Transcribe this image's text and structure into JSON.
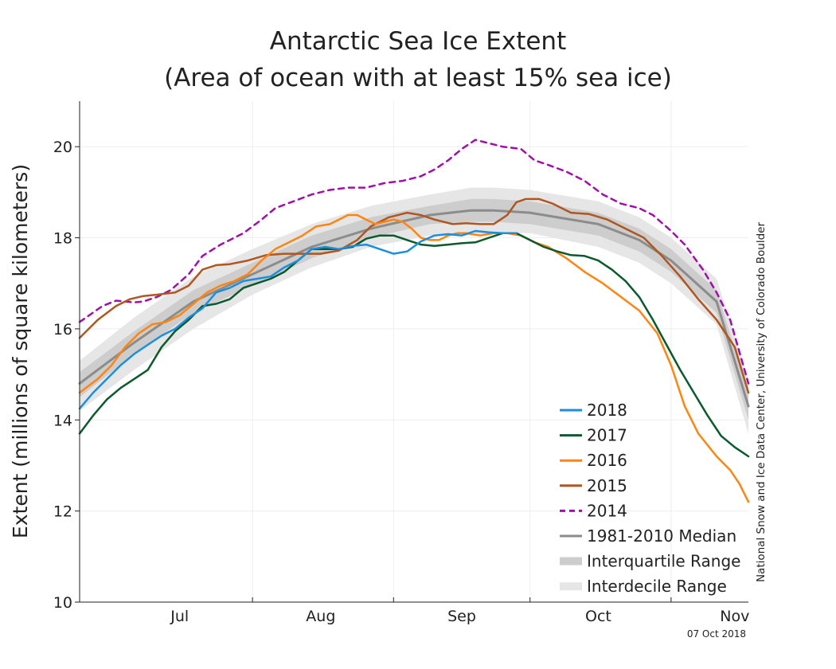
{
  "chart_data": {
    "type": "line",
    "title_line1": "Antarctic Sea Ice Extent",
    "title_line2": "(Area of ocean with at least 15% sea ice)",
    "ylabel": "Extent (millions of square kilometers)",
    "xlabel": "",
    "x_unit": "day of year",
    "xlim": [
      174,
      321
    ],
    "ylim": [
      10,
      21
    ],
    "y_ticks": [
      10,
      12,
      14,
      16,
      18,
      20
    ],
    "x_month_labels": [
      {
        "label": "Jul",
        "center": 196
      },
      {
        "label": "Aug",
        "center": 227
      },
      {
        "label": "Sep",
        "center": 258
      },
      {
        "label": "Oct",
        "center": 288
      },
      {
        "label": "Nov",
        "center": 318
      }
    ],
    "x_month_boundaries": [
      212,
      243,
      273,
      304
    ],
    "grid": true,
    "legend_position": "bottom-right",
    "credit": "National Snow and Ice Data Center, University of Colorado Boulder",
    "date_stamp": "07 Oct 2018",
    "legend": [
      {
        "label": "2018",
        "color": "#1a8fe0",
        "kind": "line"
      },
      {
        "label": "2017",
        "color": "#0b5a2e",
        "kind": "line"
      },
      {
        "label": "2016",
        "color": "#ff8410",
        "kind": "line"
      },
      {
        "label": "2015",
        "color": "#b0561e",
        "kind": "line"
      },
      {
        "label": "2014",
        "color": "#a010a8",
        "kind": "dashed"
      },
      {
        "label": "1981-2010 Median",
        "color": "#8c8c8c",
        "kind": "line"
      },
      {
        "label": "Interquartile Range",
        "color": "#cdcdcd",
        "kind": "band"
      },
      {
        "label": "Interdecile Range",
        "color": "#e6e6e6",
        "kind": "band"
      }
    ],
    "series": [
      {
        "name": "1981-2010 Median",
        "color": "#8c8c8c",
        "width": 3,
        "dash": "",
        "x": [
          174,
          186,
          199,
          212,
          225,
          238,
          251,
          260,
          265,
          273,
          288,
          297,
          304,
          314,
          321
        ],
        "y": [
          14.8,
          15.7,
          16.6,
          17.2,
          17.8,
          18.2,
          18.5,
          18.6,
          18.6,
          18.55,
          18.3,
          17.95,
          17.5,
          16.6,
          14.3
        ]
      },
      {
        "name": "2014",
        "color": "#a010a8",
        "width": 2.5,
        "dash": "7,6",
        "x": [
          174,
          179,
          182,
          184,
          186,
          188,
          191,
          194,
          198,
          201,
          205,
          210,
          214,
          217,
          221,
          225,
          229,
          233,
          237,
          241,
          245,
          249,
          252,
          255,
          258,
          261,
          263,
          267,
          271,
          274,
          277,
          281,
          285,
          289,
          293,
          297,
          300,
          304,
          307,
          311,
          314,
          317,
          321
        ],
        "y": [
          16.15,
          16.5,
          16.62,
          16.6,
          16.58,
          16.6,
          16.7,
          16.85,
          17.2,
          17.6,
          17.85,
          18.1,
          18.4,
          18.65,
          18.8,
          18.95,
          19.05,
          19.1,
          19.1,
          19.2,
          19.25,
          19.35,
          19.5,
          19.7,
          19.95,
          20.15,
          20.1,
          20.0,
          19.95,
          19.7,
          19.6,
          19.45,
          19.25,
          18.95,
          18.75,
          18.65,
          18.5,
          18.15,
          17.85,
          17.3,
          16.8,
          16.2,
          14.8
        ]
      },
      {
        "name": "2015",
        "color": "#b0561e",
        "width": 2.5,
        "dash": "",
        "x": [
          174,
          178,
          182,
          185,
          188,
          191,
          195,
          198,
          201,
          204,
          207,
          211,
          215,
          219,
          223,
          227,
          231,
          235,
          238,
          242,
          246,
          249,
          252,
          256,
          259,
          262,
          265,
          268,
          270,
          272,
          275,
          278,
          282,
          286,
          290,
          294,
          298,
          302,
          306,
          310,
          314,
          318,
          321
        ],
        "y": [
          15.8,
          16.2,
          16.5,
          16.65,
          16.72,
          16.75,
          16.8,
          16.95,
          17.3,
          17.4,
          17.42,
          17.5,
          17.62,
          17.65,
          17.65,
          17.65,
          17.72,
          17.95,
          18.25,
          18.45,
          18.55,
          18.5,
          18.4,
          18.3,
          18.32,
          18.3,
          18.3,
          18.5,
          18.78,
          18.85,
          18.85,
          18.75,
          18.55,
          18.52,
          18.4,
          18.2,
          18.0,
          17.6,
          17.15,
          16.65,
          16.2,
          15.6,
          14.6
        ]
      },
      {
        "name": "2016",
        "color": "#ff8410",
        "width": 2.5,
        "dash": "",
        "x": [
          174,
          178,
          181,
          184,
          187,
          190,
          193,
          196,
          199,
          202,
          205,
          208,
          211,
          214,
          217,
          220,
          223,
          226,
          229,
          231,
          233,
          235,
          237,
          239,
          241,
          243,
          245,
          247,
          249,
          251,
          253,
          255,
          257,
          259,
          262,
          265,
          268,
          271,
          274,
          277,
          281,
          285,
          289,
          293,
          297,
          301,
          304,
          307,
          310,
          314,
          317,
          319,
          321
        ],
        "y": [
          14.6,
          14.9,
          15.2,
          15.6,
          15.9,
          16.1,
          16.15,
          16.3,
          16.55,
          16.8,
          16.95,
          17.05,
          17.2,
          17.5,
          17.75,
          17.9,
          18.05,
          18.25,
          18.3,
          18.4,
          18.5,
          18.5,
          18.4,
          18.3,
          18.35,
          18.4,
          18.35,
          18.2,
          18.0,
          17.95,
          17.95,
          18.05,
          18.1,
          18.1,
          18.05,
          18.1,
          18.1,
          18.05,
          17.9,
          17.8,
          17.55,
          17.25,
          17.0,
          16.7,
          16.4,
          15.9,
          15.2,
          14.3,
          13.7,
          13.2,
          12.9,
          12.6,
          12.2
        ]
      },
      {
        "name": "2017",
        "color": "#0b5a2e",
        "width": 2.5,
        "dash": "",
        "x": [
          174,
          177,
          180,
          183,
          186,
          189,
          192,
          195,
          198,
          201,
          204,
          207,
          210,
          213,
          216,
          219,
          222,
          225,
          228,
          231,
          234,
          237,
          240,
          243,
          246,
          249,
          252,
          255,
          258,
          261,
          264,
          267,
          270,
          273,
          276,
          279,
          282,
          285,
          288,
          291,
          294,
          297,
          300,
          303,
          306,
          309,
          312,
          315,
          318,
          321
        ],
        "y": [
          13.7,
          14.1,
          14.45,
          14.7,
          14.9,
          15.1,
          15.6,
          15.95,
          16.2,
          16.5,
          16.55,
          16.65,
          16.9,
          17.0,
          17.1,
          17.25,
          17.5,
          17.75,
          17.75,
          17.75,
          17.8,
          17.98,
          18.05,
          18.05,
          17.95,
          17.85,
          17.82,
          17.85,
          17.88,
          17.9,
          18.0,
          18.1,
          18.1,
          17.95,
          17.8,
          17.7,
          17.62,
          17.6,
          17.5,
          17.3,
          17.05,
          16.7,
          16.2,
          15.65,
          15.1,
          14.6,
          14.1,
          13.65,
          13.4,
          13.2
        ]
      },
      {
        "name": "2018",
        "color": "#1a8fe0",
        "width": 2.5,
        "dash": "",
        "x": [
          174,
          177,
          180,
          183,
          186,
          189,
          192,
          195,
          198,
          201,
          204,
          207,
          210,
          213,
          216,
          219,
          222,
          225,
          228,
          231,
          234,
          237,
          240,
          243,
          246,
          249,
          252,
          255,
          258,
          261,
          264,
          267,
          270
        ],
        "y": [
          14.25,
          14.6,
          14.9,
          15.2,
          15.45,
          15.65,
          15.85,
          16.0,
          16.25,
          16.45,
          16.8,
          16.9,
          17.05,
          17.1,
          17.15,
          17.35,
          17.5,
          17.75,
          17.8,
          17.75,
          17.82,
          17.85,
          17.75,
          17.65,
          17.7,
          17.92,
          18.05,
          18.08,
          18.05,
          18.15,
          18.12,
          18.1,
          18.1
        ]
      }
    ],
    "bands": [
      {
        "name": "Interdecile Range",
        "color": "#e6e6e6",
        "x": [
          174,
          186,
          199,
          212,
          225,
          238,
          251,
          260,
          265,
          273,
          288,
          297,
          304,
          314,
          321
        ],
        "lower": [
          14.2,
          15.1,
          16.0,
          16.75,
          17.35,
          17.8,
          18.05,
          18.05,
          18.1,
          18.1,
          17.8,
          17.45,
          17.0,
          16.1,
          13.7
        ],
        "upper": [
          15.3,
          16.25,
          17.15,
          17.75,
          18.3,
          18.7,
          18.95,
          19.1,
          19.1,
          19.05,
          18.8,
          18.45,
          18.0,
          17.1,
          14.9
        ]
      },
      {
        "name": "Interquartile Range",
        "color": "#cdcdcd",
        "x": [
          174,
          186,
          199,
          212,
          225,
          238,
          251,
          260,
          265,
          273,
          288,
          297,
          304,
          314,
          321
        ],
        "lower": [
          14.5,
          15.45,
          16.35,
          16.95,
          17.55,
          18.0,
          18.3,
          18.35,
          18.35,
          18.3,
          18.05,
          17.7,
          17.25,
          16.35,
          14.0
        ],
        "upper": [
          15.05,
          15.95,
          16.85,
          17.45,
          18.05,
          18.45,
          18.7,
          18.85,
          18.85,
          18.8,
          18.55,
          18.2,
          17.75,
          16.85,
          14.6
        ]
      }
    ]
  }
}
